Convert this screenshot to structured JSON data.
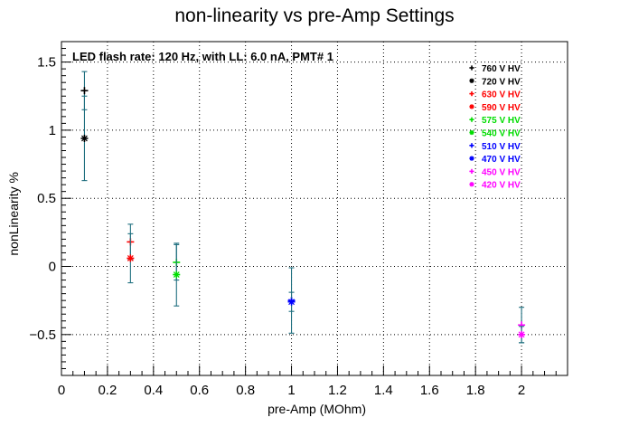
{
  "chart_data": {
    "type": "scatter",
    "title": "non-linearity vs pre-Amp Settings",
    "annotation": "LED flash rate: 120 Hz, with LL: 6.0 nA, PMT# 1",
    "xlabel": "pre-Amp (MOhm)",
    "ylabel": "nonLinearity %",
    "xlim": [
      0,
      2.2
    ],
    "ylim": [
      -0.8,
      1.65
    ],
    "xticks": [
      0,
      0.2,
      0.4,
      0.6,
      0.8,
      1,
      1.2,
      1.4,
      1.6,
      1.8,
      2
    ],
    "xtick_labels": [
      "0",
      "0.2",
      "0.4",
      "0.6",
      "0.8",
      "1",
      "1.2",
      "1.4",
      "1.6",
      "1.8",
      "2"
    ],
    "yticks": [
      -0.5,
      0,
      0.5,
      1,
      1.5
    ],
    "ytick_labels": [
      "−0.5",
      "0",
      "0.5",
      "1",
      "1.5"
    ],
    "grid": true,
    "legend_position": "top-right",
    "errorbar_color": "#1f6f7f",
    "series": [
      {
        "name": "760 V HV",
        "marker": "+",
        "color": "#000000",
        "x": [
          0.1
        ],
        "y": [
          1.29
        ],
        "err": [
          0.14
        ]
      },
      {
        "name": "720 V HV",
        "marker": "*",
        "color": "#000000",
        "x": [
          0.1
        ],
        "y": [
          0.94
        ],
        "err": [
          0.31
        ]
      },
      {
        "name": "630 V HV",
        "marker": "+",
        "color": "#ff0000",
        "x": [
          0.3
        ],
        "y": [
          0.18
        ],
        "err": [
          0.13
        ]
      },
      {
        "name": "590 V HV",
        "marker": "*",
        "color": "#ff0000",
        "x": [
          0.3
        ],
        "y": [
          0.06
        ],
        "err": [
          0.18
        ]
      },
      {
        "name": "575 V HV",
        "marker": "+",
        "color": "#00dd00",
        "x": [
          0.5
        ],
        "y": [
          0.03
        ],
        "err": [
          0.13
        ]
      },
      {
        "name": "540 V HV",
        "marker": "*",
        "color": "#00dd00",
        "x": [
          0.5
        ],
        "y": [
          -0.06
        ],
        "err": [
          0.23
        ]
      },
      {
        "name": "510 V HV",
        "marker": "+",
        "color": "#0000ff",
        "x": [
          1.0
        ],
        "y": [
          -0.25
        ],
        "err": [
          0.24
        ]
      },
      {
        "name": "470 V HV",
        "marker": "*",
        "color": "#0000ff",
        "x": [
          1.0
        ],
        "y": [
          -0.26
        ],
        "err": [
          0.07
        ]
      },
      {
        "name": "450 V HV",
        "marker": "+",
        "color": "#ff00ff",
        "x": [
          2.0
        ],
        "y": [
          -0.43
        ],
        "err": [
          0.13
        ]
      },
      {
        "name": "420 V HV",
        "marker": "*",
        "color": "#ff00ff",
        "x": [
          2.0
        ],
        "y": [
          -0.5
        ],
        "err": [
          0.06
        ]
      }
    ]
  }
}
